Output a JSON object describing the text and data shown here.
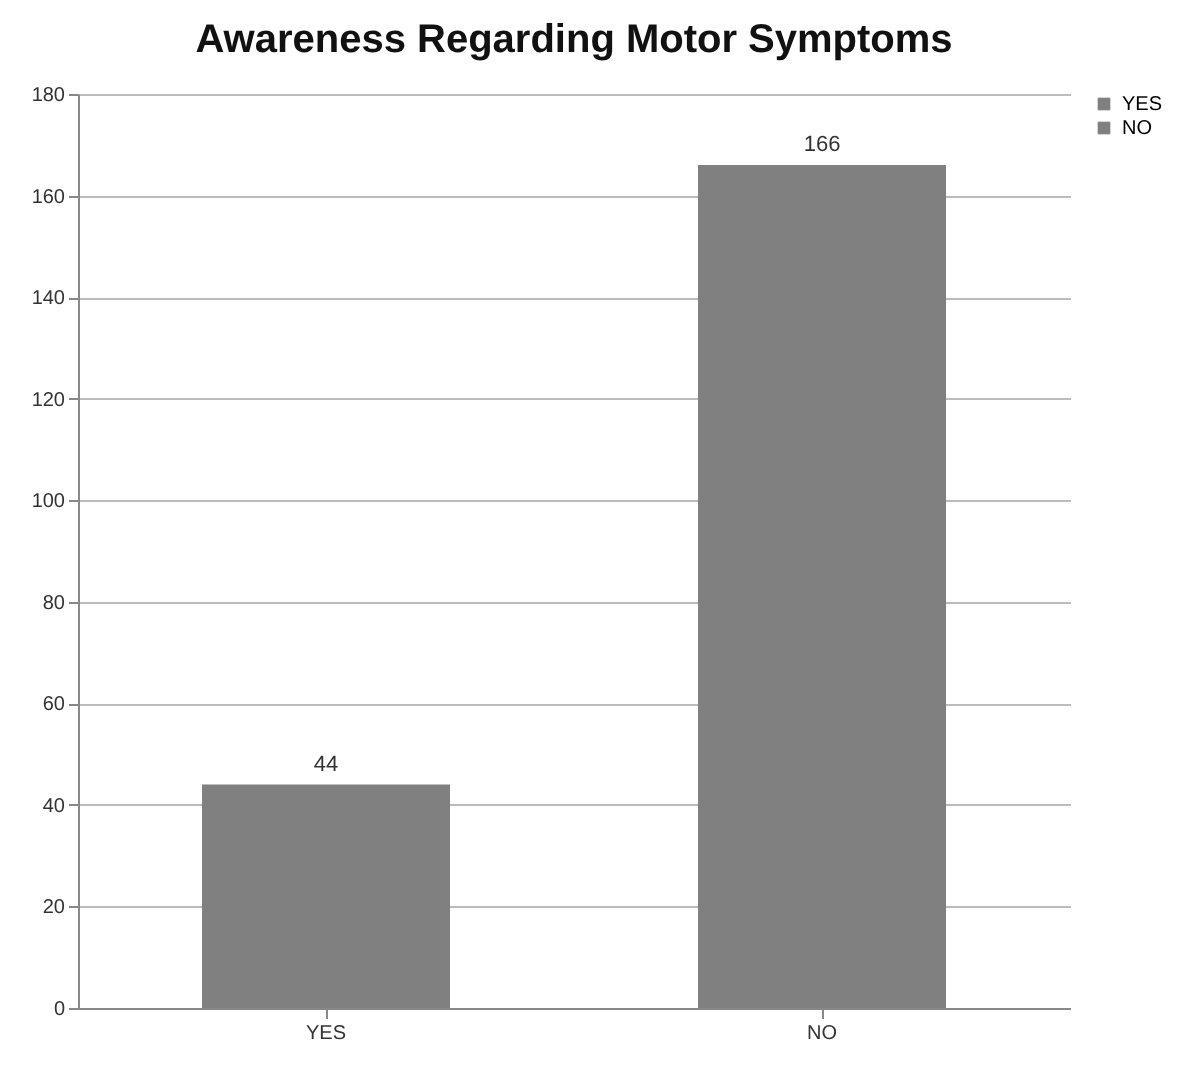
{
  "chart_data": {
    "type": "bar",
    "title": "Awareness Regarding Motor Symptoms",
    "categories": [
      "YES",
      "NO"
    ],
    "series": [
      {
        "name": "YES",
        "color": "#808080",
        "values": [
          44,
          null
        ]
      },
      {
        "name": "NO",
        "color": "#808080",
        "values": [
          null,
          166
        ]
      }
    ],
    "ylim": [
      0,
      180
    ],
    "yticks": [
      0,
      20,
      40,
      60,
      80,
      100,
      120,
      140,
      160,
      180
    ],
    "grid": "y",
    "legend": "right",
    "data_labels": true
  }
}
